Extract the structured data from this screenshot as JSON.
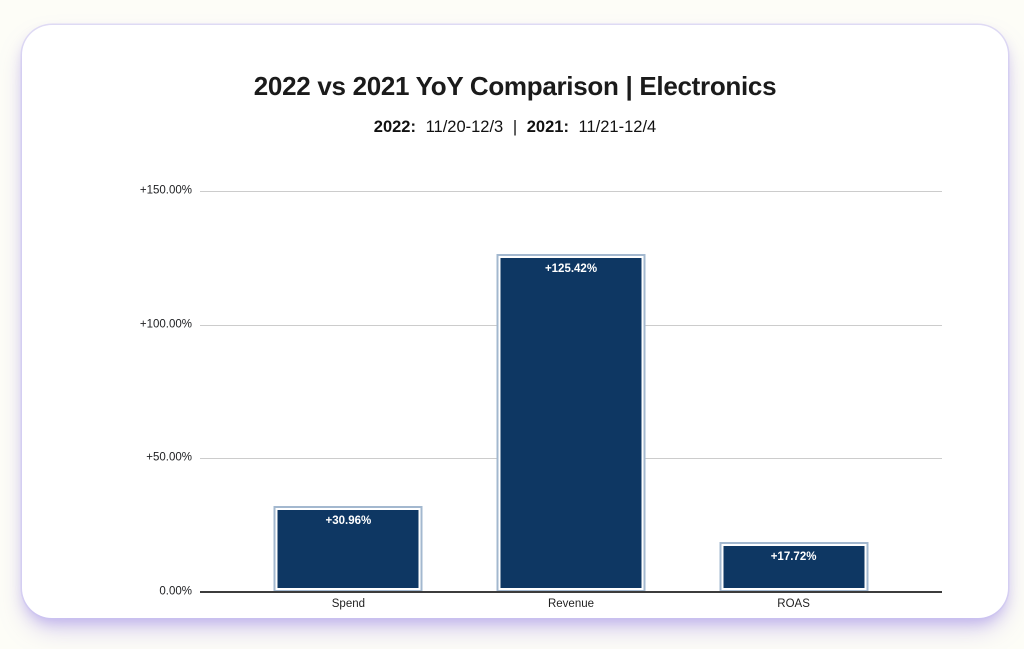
{
  "header": {
    "title": "2022 vs 2021 YoY Comparison | Electronics",
    "subtitle": {
      "y2022_label": "2022:",
      "y2022_range": "11/20-12/3",
      "separator": "|",
      "y2021_label": "2021:",
      "y2021_range": "11/21-12/4"
    }
  },
  "chart_data": {
    "type": "bar",
    "title": "2022 vs 2021 YoY Comparison | Electronics",
    "subtitle": "2022: 11/20-12/3 | 2021: 11/21-12/4",
    "categories": [
      "Spend",
      "Revenue",
      "ROAS"
    ],
    "values": [
      30.96,
      125.42,
      17.72
    ],
    "bar_labels": [
      "+30.96%",
      "+125.42%",
      "+17.72%"
    ],
    "xlabel": "",
    "ylabel": "",
    "ylim": [
      0,
      150
    ],
    "yticks": [
      {
        "value": 0,
        "label": "0.00%"
      },
      {
        "value": 50,
        "label": "+50.00%"
      },
      {
        "value": 100,
        "label": "+100.00%"
      },
      {
        "value": 150,
        "label": "+150.00%"
      }
    ],
    "grid": true,
    "legend": false,
    "colors": {
      "bar_fill": "#0e3763",
      "bar_border_outer": "#a3b8cf",
      "bar_border_inner": "#ffffff",
      "bar_value_label": "#ffffff",
      "gridline": "#cccccc",
      "axis_line": "#3c3c3c",
      "tick_label": "#202124"
    }
  }
}
